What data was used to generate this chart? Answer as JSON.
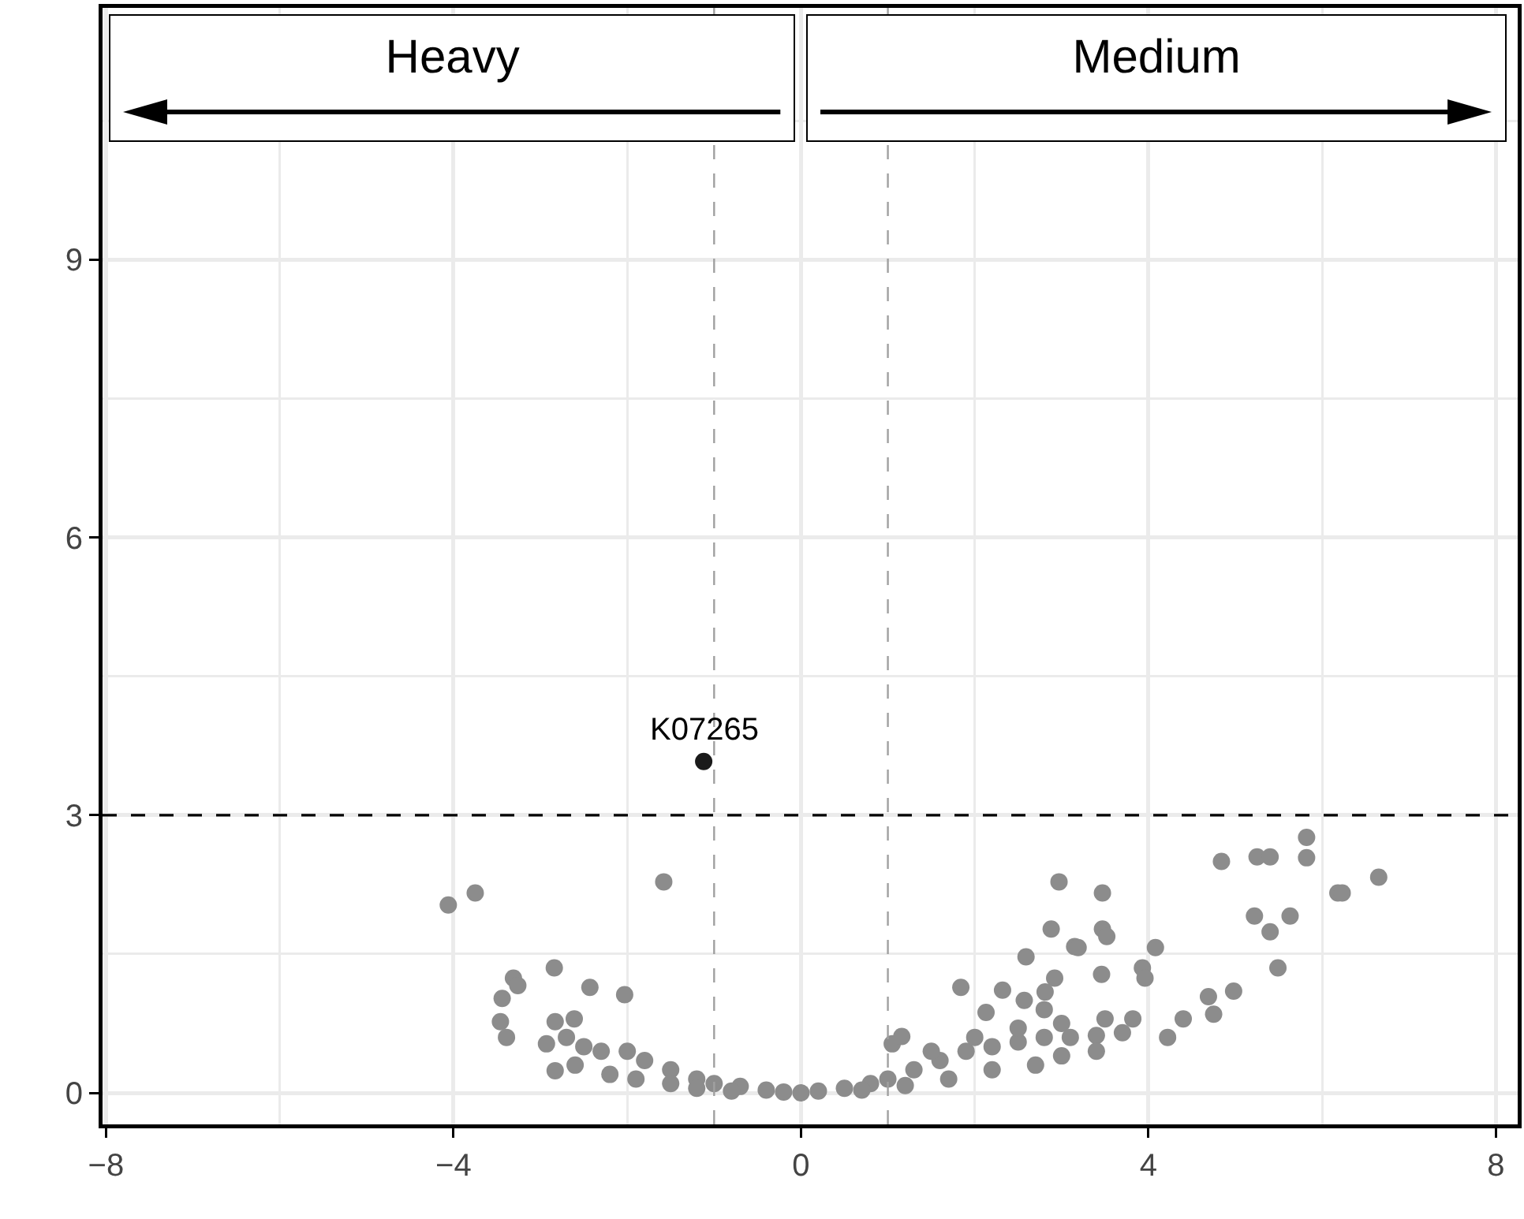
{
  "chart_data": {
    "type": "scatter",
    "annotations": [
      "Heavy",
      "Medium",
      {
        "text": "K07265",
        "x": -1.12,
        "y": 3.58
      }
    ],
    "xlim": [
      -8.04,
      8.25
    ],
    "xticks": [
      {
        "value": -8,
        "label": "−8"
      },
      {
        "value": -4,
        "label": "−4"
      },
      0,
      4,
      8
    ],
    "ylim": [
      -0.34,
      11.72
    ],
    "yticks": [
      0,
      3,
      6,
      9
    ],
    "grid": true,
    "marker": "circle",
    "ref_lines": [
      {
        "axis": "y",
        "value": 3,
        "color": "#000000",
        "line_style": "dashed"
      },
      {
        "axis": "x",
        "value": -1,
        "color": "#a0a0a0",
        "line_style": "dashed"
      },
      {
        "axis": "x",
        "value": 1,
        "color": "#a0a0a0",
        "line_style": "dashed"
      }
    ],
    "series": [
      {
        "color": "#8c8c8c",
        "x": [
          -4.06,
          -3.75,
          -1.58,
          -3.31,
          -3.26,
          -3.44,
          -3.46,
          -3.39,
          -2.84,
          -2.43,
          -2.03,
          -2.83,
          -2.61,
          -2.93,
          -2.83,
          -2.7,
          -2.5,
          -2.3,
          -2.0,
          -1.8,
          -1.5,
          -1.2,
          -1.0,
          -0.7,
          -0.4,
          -0.2,
          0,
          -2.6,
          -2.2,
          -1.9,
          -1.5,
          -1.2,
          -0.8,
          2.97,
          2.88,
          3.15,
          2.59,
          2.92,
          2.81,
          1.84,
          2.32,
          2.57,
          2.13,
          1.05,
          1.16,
          3.47,
          3.47,
          3.52,
          3.19,
          4.08,
          3.46,
          3.93,
          3.96,
          3.82,
          4.22,
          4.4,
          4.69,
          4.75,
          4.98,
          4.84,
          5.25,
          5.4,
          5.82,
          5.82,
          5.22,
          5.4,
          5.63,
          5.49,
          6.18,
          6.23,
          6.65,
          0.2,
          0.5,
          0.8,
          1.0,
          1.3,
          1.6,
          1.9,
          2.2,
          2.5,
          2.8,
          3.1,
          3.4,
          3.7,
          0.7,
          1.2,
          1.7,
          2.2,
          2.7,
          3.0,
          3.4,
          1.5,
          2.0,
          2.5,
          3.0,
          3.5,
          2.8
        ],
        "values": [
          2.03,
          2.16,
          2.28,
          1.24,
          1.16,
          1.02,
          0.77,
          0.6,
          1.35,
          1.14,
          1.06,
          0.77,
          0.8,
          0.53,
          0.24,
          0.6,
          0.5,
          0.45,
          0.45,
          0.35,
          0.25,
          0.15,
          0.1,
          0.07,
          0.03,
          0.01,
          0,
          0.3,
          0.2,
          0.15,
          0.1,
          0.05,
          0.02,
          2.28,
          1.77,
          1.58,
          1.47,
          1.24,
          1.09,
          1.14,
          1.11,
          1.0,
          0.87,
          0.53,
          0.61,
          2.16,
          1.77,
          1.69,
          1.57,
          1.57,
          1.28,
          1.35,
          1.24,
          0.8,
          0.6,
          0.8,
          1.04,
          0.85,
          1.1,
          2.5,
          2.55,
          2.55,
          2.76,
          2.54,
          1.91,
          1.74,
          1.91,
          1.35,
          2.16,
          2.16,
          2.33,
          0.02,
          0.05,
          0.1,
          0.15,
          0.25,
          0.35,
          0.45,
          0.5,
          0.55,
          0.6,
          0.6,
          0.62,
          0.65,
          0.03,
          0.08,
          0.15,
          0.25,
          0.3,
          0.4,
          0.45,
          0.45,
          0.6,
          0.7,
          0.75,
          0.8,
          0.9
        ]
      },
      {
        "color": "#1a1a1a",
        "x": [
          -1.12
        ],
        "values": [
          3.58
        ]
      }
    ]
  }
}
